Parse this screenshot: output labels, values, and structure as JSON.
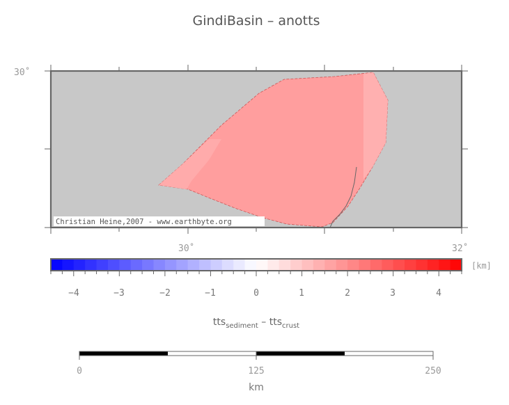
{
  "title": "GindiBasin – anotts",
  "map": {
    "lat_labels": [
      "30˚"
    ],
    "lon_labels": [
      "30˚",
      "32˚"
    ],
    "credit": "Christian Heine,2007 - www.earthbyte.org",
    "background_color": "#c8c8c8",
    "basin_color_main": "#ff9e9e",
    "basin_color_light": "#ffb0b0"
  },
  "colorbar": {
    "unit_label": "[km]",
    "tick_labels": [
      "−4",
      "−3",
      "−2",
      "−1",
      "0",
      "1",
      "2",
      "3",
      "4"
    ],
    "range": [
      -4.5,
      4.5
    ],
    "low_color": "#0000ff",
    "mid_color": "#ffffff",
    "high_color": "#ff0000"
  },
  "variable": {
    "main1": "tts",
    "sub1": "sediment",
    "minus": "–",
    "main2": "tts",
    "sub2": "crust"
  },
  "scalebar": {
    "tick_labels": [
      "0",
      "125",
      "250"
    ],
    "unit_label": "km"
  }
}
